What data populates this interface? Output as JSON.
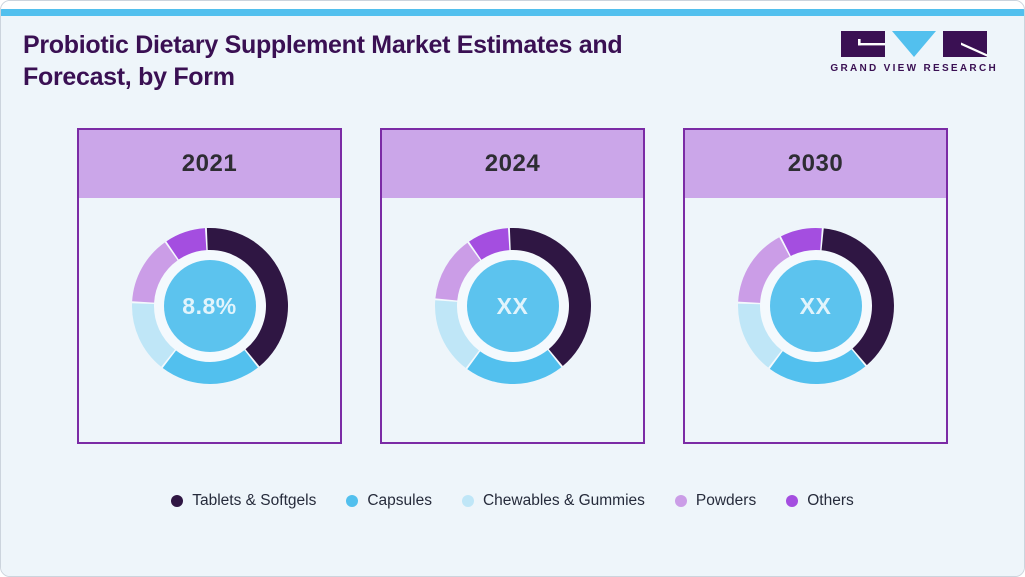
{
  "header": {
    "title": "Probiotic Dietary Supplement Market Estimates and Forecast, by Form",
    "logo_text": "GRAND VIEW RESEARCH"
  },
  "colors": {
    "accent_bar": "#52c0ee",
    "page_bg": "#eef5fa",
    "title_text": "#3a1053",
    "card_border": "#7b2ba5",
    "card_header_bg": "#cba6e9",
    "year_text": "#2e2d33",
    "ring_bg": "#f4f9fd",
    "center_circle": "#5cc3ee",
    "tablets": "#2f1643",
    "capsules": "#52c0ee",
    "chewables": "#bfe6f7",
    "powders": "#cb9de7",
    "others": "#a44ee0"
  },
  "panels": [
    {
      "year": "2021",
      "center_label": "8.8%",
      "rotation_deg": -3,
      "segments": [
        {
          "key": "tablets",
          "value": 40.1
        },
        {
          "key": "capsules",
          "value": 21.3
        },
        {
          "key": "chewables",
          "value": 15.2
        },
        {
          "key": "powders",
          "value": 14.6
        },
        {
          "key": "others",
          "value": 8.8
        }
      ]
    },
    {
      "year": "2024",
      "center_label": "XX",
      "rotation_deg": -3,
      "segments": [
        {
          "key": "tablets",
          "value": 40.0
        },
        {
          "key": "capsules",
          "value": 21.0
        },
        {
          "key": "chewables",
          "value": 16.2
        },
        {
          "key": "powders",
          "value": 13.9
        },
        {
          "key": "others",
          "value": 8.9
        }
      ]
    },
    {
      "year": "2030",
      "center_label": "XX",
      "rotation_deg": 5,
      "segments": [
        {
          "key": "tablets",
          "value": 37.5
        },
        {
          "key": "capsules",
          "value": 21.4
        },
        {
          "key": "chewables",
          "value": 15.4
        },
        {
          "key": "powders",
          "value": 16.7
        },
        {
          "key": "others",
          "value": 9.0
        }
      ]
    }
  ],
  "legend": {
    "items": [
      {
        "label": "Tablets & Softgels",
        "key": "tablets"
      },
      {
        "label": "Capsules",
        "key": "capsules"
      },
      {
        "label": "Chewables & Gummies",
        "key": "chewables"
      },
      {
        "label": "Powders",
        "key": "powders"
      },
      {
        "label": "Others",
        "key": "others"
      }
    ]
  },
  "chart_data": [
    {
      "type": "pie",
      "subtype": "donut",
      "title": "2021",
      "categories": [
        "Tablets & Softgels",
        "Capsules",
        "Chewables & Gummies",
        "Powders",
        "Others"
      ],
      "values": [
        40.1,
        21.3,
        15.2,
        14.6,
        8.8
      ],
      "unit": "%",
      "center_label": "8.8%",
      "legend_position": "bottom",
      "colors": [
        "#2f1643",
        "#52c0ee",
        "#bfe6f7",
        "#cb9de7",
        "#a44ee0"
      ]
    },
    {
      "type": "pie",
      "subtype": "donut",
      "title": "2024",
      "categories": [
        "Tablets & Softgels",
        "Capsules",
        "Chewables & Gummies",
        "Powders",
        "Others"
      ],
      "values": [
        40.0,
        21.0,
        16.2,
        13.9,
        8.9
      ],
      "unit": "%",
      "center_label": "XX",
      "legend_position": "bottom",
      "colors": [
        "#2f1643",
        "#52c0ee",
        "#bfe6f7",
        "#cb9de7",
        "#a44ee0"
      ]
    },
    {
      "type": "pie",
      "subtype": "donut",
      "title": "2030",
      "categories": [
        "Tablets & Softgels",
        "Capsules",
        "Chewables & Gummies",
        "Powders",
        "Others"
      ],
      "values": [
        37.5,
        21.4,
        15.4,
        16.7,
        9.0
      ],
      "unit": "%",
      "center_label": "XX",
      "legend_position": "bottom",
      "colors": [
        "#2f1643",
        "#52c0ee",
        "#bfe6f7",
        "#cb9de7",
        "#a44ee0"
      ]
    }
  ]
}
